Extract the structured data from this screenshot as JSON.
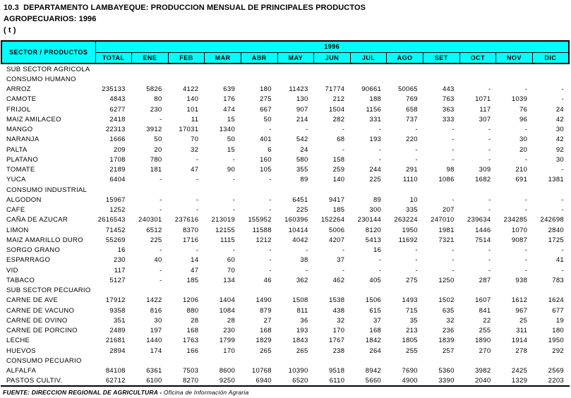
{
  "header": {
    "title_line1": "10.3  DEPARTAMENTO LAMBAYEQUE: PRODUCCION MENSUAL DE PRINCIPALES PRODUCTOS",
    "title_line2": "AGROPECUARIOS: 1996",
    "unit_note": "( t )"
  },
  "table": {
    "corner_header": "SECTOR / PRODUCTOS",
    "year_header": "1996",
    "columns": [
      "TOTAL",
      "ENE",
      "FEB",
      "MAR",
      "ABR",
      "MAY",
      "JUN",
      "JUL",
      "AGO",
      "SET",
      "OCT",
      "NOV",
      "DIC"
    ],
    "rows": [
      {
        "label": "SUB SECTOR AGRICOLA",
        "type": "section",
        "values": []
      },
      {
        "label": "CONSUMO HUMANO",
        "type": "section",
        "values": []
      },
      {
        "label": "ARROZ",
        "type": "data",
        "values": [
          "235133",
          "5826",
          "4122",
          "639",
          "180",
          "11423",
          "71774",
          "90661",
          "50065",
          "443",
          "-",
          "-",
          "-"
        ]
      },
      {
        "label": "CAMOTE",
        "type": "data",
        "values": [
          "4843",
          "80",
          "140",
          "176",
          "275",
          "130",
          "212",
          "188",
          "769",
          "763",
          "1071",
          "1039",
          "-"
        ]
      },
      {
        "label": "FRIJOL",
        "type": "data",
        "values": [
          "6277",
          "230",
          "101",
          "474",
          "667",
          "907",
          "1504",
          "1156",
          "658",
          "363",
          "117",
          "76",
          "24"
        ]
      },
      {
        "label": "MAIZ AMILACEO",
        "type": "data",
        "values": [
          "2418",
          "-",
          "11",
          "15",
          "50",
          "214",
          "282",
          "331",
          "737",
          "333",
          "307",
          "96",
          "42"
        ]
      },
      {
        "label": "MANGO",
        "type": "data",
        "values": [
          "22313",
          "3912",
          "17031",
          "1340",
          "-",
          "-",
          "-",
          "-",
          "-",
          "-",
          "-",
          "-",
          "30"
        ]
      },
      {
        "label": "NARANJA",
        "type": "data",
        "values": [
          "1666",
          "50",
          "70",
          "50",
          "401",
          "542",
          "68",
          "193",
          "220",
          "-",
          "-",
          "30",
          "42"
        ]
      },
      {
        "label": "PALTA",
        "type": "data",
        "values": [
          "209",
          "20",
          "32",
          "15",
          "6",
          "24",
          "-",
          "-",
          "-",
          "-",
          "-",
          "20",
          "92"
        ]
      },
      {
        "label": "PLATANO",
        "type": "data",
        "values": [
          "1708",
          "780",
          "-",
          "-",
          "160",
          "580",
          "158",
          "-",
          "-",
          "-",
          "-",
          "-",
          "30"
        ]
      },
      {
        "label": "TOMATE",
        "type": "data",
        "values": [
          "2189",
          "181",
          "47",
          "90",
          "105",
          "355",
          "259",
          "244",
          "291",
          "98",
          "309",
          "210",
          "-"
        ]
      },
      {
        "label": "YUCA",
        "type": "data",
        "values": [
          "6404",
          "-",
          "-",
          "-",
          "-",
          "89",
          "140",
          "225",
          "1110",
          "1086",
          "1682",
          "691",
          "1381"
        ]
      },
      {
        "label": "CONSUMO INDUSTRIAL",
        "type": "section",
        "values": []
      },
      {
        "label": "ALGODON",
        "type": "data",
        "values": [
          "15967",
          "-",
          "-",
          "-",
          "-",
          "6451",
          "9417",
          "89",
          "10",
          "-",
          "-",
          "-",
          "-"
        ]
      },
      {
        "label": "CAFE",
        "type": "data",
        "values": [
          "1252",
          "-",
          "-",
          "-",
          "-",
          "225",
          "185",
          "300",
          "335",
          "207",
          "-",
          "-",
          "-"
        ]
      },
      {
        "label": "CAÑA DE AZUCAR",
        "type": "data",
        "values": [
          "2616543",
          "240301",
          "237616",
          "213019",
          "155952",
          "160396",
          "152264",
          "230144",
          "263224",
          "247010",
          "239634",
          "234285",
          "242698"
        ]
      },
      {
        "label": "LIMON",
        "type": "data",
        "values": [
          "71452",
          "6512",
          "8370",
          "12155",
          "11588",
          "10414",
          "5006",
          "8120",
          "1950",
          "1981",
          "1446",
          "1070",
          "2840"
        ]
      },
      {
        "label": "MAIZ AMARILLO DURO",
        "type": "data",
        "values": [
          "55269",
          "225",
          "1716",
          "1115",
          "1212",
          "4042",
          "4207",
          "5413",
          "11692",
          "7321",
          "7514",
          "9087",
          "1725"
        ]
      },
      {
        "label": "SORGO GRANO",
        "type": "data",
        "values": [
          "16",
          "-",
          "-",
          "-",
          "-",
          "-",
          "-",
          "16",
          "-",
          "-",
          "-",
          "-",
          "-"
        ]
      },
      {
        "label": "ESPARRAGO",
        "type": "data",
        "values": [
          "230",
          "40",
          "14",
          "60",
          "-",
          "38",
          "37",
          "-",
          "-",
          "-",
          "-",
          "-",
          "41"
        ]
      },
      {
        "label": "VID",
        "type": "data",
        "values": [
          "117",
          "-",
          "47",
          "70",
          "-",
          "-",
          "-",
          "-",
          "-",
          "-",
          "-",
          "-",
          "-"
        ]
      },
      {
        "label": "TABACO",
        "type": "data",
        "values": [
          "5127",
          "-",
          "185",
          "134",
          "46",
          "362",
          "462",
          "405",
          "275",
          "1250",
          "287",
          "938",
          "783"
        ]
      },
      {
        "label": "SUB SECTOR PECUARIO",
        "type": "section",
        "values": []
      },
      {
        "label": "CARNE DE AVE",
        "type": "data",
        "values": [
          "17912",
          "1422",
          "1206",
          "1404",
          "1490",
          "1508",
          "1538",
          "1506",
          "1493",
          "1502",
          "1607",
          "1612",
          "1624"
        ]
      },
      {
        "label": "CARNE DE VACUNO",
        "type": "data",
        "values": [
          "9358",
          "816",
          "880",
          "1084",
          "879",
          "811",
          "438",
          "615",
          "715",
          "635",
          "841",
          "967",
          "677"
        ]
      },
      {
        "label": "CARNE DE OVINO",
        "type": "data",
        "values": [
          "351",
          "30",
          "28",
          "28",
          "27",
          "36",
          "32",
          "37",
          "35",
          "32",
          "22",
          "25",
          "19"
        ]
      },
      {
        "label": "CARNE DE PORCINO",
        "type": "data",
        "values": [
          "2489",
          "197",
          "168",
          "230",
          "168",
          "193",
          "170",
          "168",
          "213",
          "236",
          "255",
          "311",
          "180"
        ]
      },
      {
        "label": "LECHE",
        "type": "data",
        "values": [
          "21681",
          "1440",
          "1763",
          "1799",
          "1829",
          "1843",
          "1767",
          "1842",
          "1805",
          "1839",
          "1890",
          "1914",
          "1950"
        ]
      },
      {
        "label": "HUEVOS",
        "type": "data",
        "values": [
          "2894",
          "174",
          "166",
          "170",
          "265",
          "265",
          "238",
          "264",
          "255",
          "257",
          "270",
          "278",
          "292"
        ]
      },
      {
        "label": "CONSUMO PECUARIO",
        "type": "section",
        "values": []
      },
      {
        "label": "ALFALFA",
        "type": "data",
        "values": [
          "84108",
          "6361",
          "7503",
          "8600",
          "10768",
          "10390",
          "9518",
          "8942",
          "7690",
          "5360",
          "3982",
          "2425",
          "2569"
        ]
      },
      {
        "label": "PASTOS CULTIV.",
        "type": "data",
        "values": [
          "62712",
          "6100",
          "8270",
          "9250",
          "6940",
          "6520",
          "6110",
          "5660",
          "4900",
          "3390",
          "2040",
          "1329",
          "2203"
        ]
      }
    ]
  },
  "footer": {
    "source_label": "FUENTE: DIRECCION REGIONAL DE AGRICULTURA - ",
    "source_office": "Oficina de Información Agraria"
  },
  "colors": {
    "header_bg": "#00FFFF",
    "border": "#000000",
    "text": "#000000",
    "page_bg": "#FFFFFF"
  }
}
